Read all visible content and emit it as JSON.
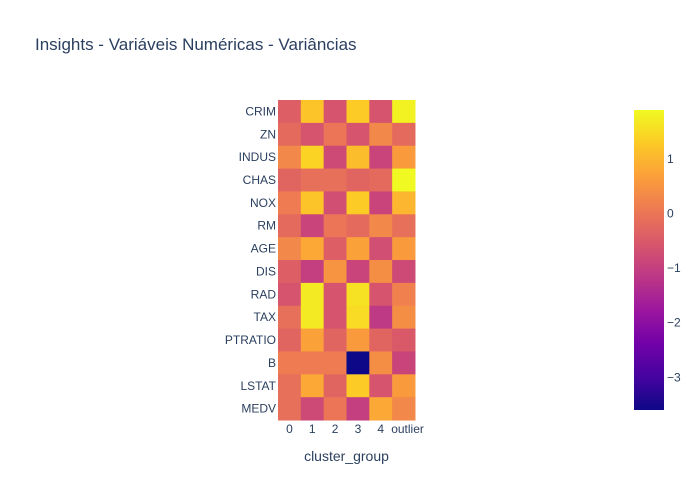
{
  "chart_data": {
    "type": "heatmap",
    "title": "Insights - Variáveis Numéricas - Variâncias",
    "xlabel": "cluster_group",
    "ylabel": "",
    "x": [
      "0",
      "1",
      "2",
      "3",
      "4",
      "outlier"
    ],
    "y": [
      "CRIM",
      "ZN",
      "INDUS",
      "CHAS",
      "NOX",
      "RM",
      "AGE",
      "DIS",
      "RAD",
      "TAX",
      "PTRATIO",
      "B",
      "LSTAT",
      "MEDV"
    ],
    "z": [
      [
        -0.4,
        1.2,
        -0.6,
        1.3,
        -0.6,
        1.8
      ],
      [
        -0.2,
        -0.6,
        0.0,
        -0.6,
        0.3,
        -0.2
      ],
      [
        0.3,
        1.4,
        -0.8,
        1.1,
        -0.9,
        0.6
      ],
      [
        -0.3,
        -0.1,
        -0.1,
        -0.3,
        -0.2,
        1.9
      ],
      [
        0.1,
        1.2,
        -0.7,
        1.3,
        -0.9,
        1.0
      ],
      [
        -0.2,
        -0.9,
        0.0,
        -0.2,
        0.3,
        -0.1
      ],
      [
        0.3,
        0.8,
        -0.4,
        0.7,
        -0.7,
        0.6
      ],
      [
        -0.4,
        -1.0,
        0.5,
        -0.9,
        0.4,
        -0.8
      ],
      [
        -0.6,
        1.7,
        -0.6,
        1.6,
        -0.6,
        0.2
      ],
      [
        -0.1,
        1.7,
        -0.6,
        1.5,
        -1.1,
        0.4
      ],
      [
        -0.3,
        0.7,
        -0.3,
        0.6,
        -0.3,
        -0.5
      ],
      [
        0.1,
        0.1,
        0.1,
        -3.6,
        0.4,
        -0.9
      ],
      [
        -0.1,
        0.8,
        -0.3,
        1.3,
        -0.6,
        0.6
      ],
      [
        -0.1,
        -0.8,
        0.0,
        -1.0,
        0.8,
        0.3
      ]
    ],
    "colorscale": [
      "#0d0887",
      "#46039f",
      "#7201a8",
      "#9c179e",
      "#bd3786",
      "#d8576b",
      "#ed7953",
      "#fb9f3a",
      "#fdca26",
      "#f0f921"
    ],
    "zmin": -3.6,
    "zmax": 1.9,
    "colorbar_ticks": [
      1,
      0,
      -1,
      -2,
      -3
    ],
    "colorbar_tick_labels": [
      "1",
      "0",
      "−1",
      "−2",
      "−3"
    ]
  }
}
